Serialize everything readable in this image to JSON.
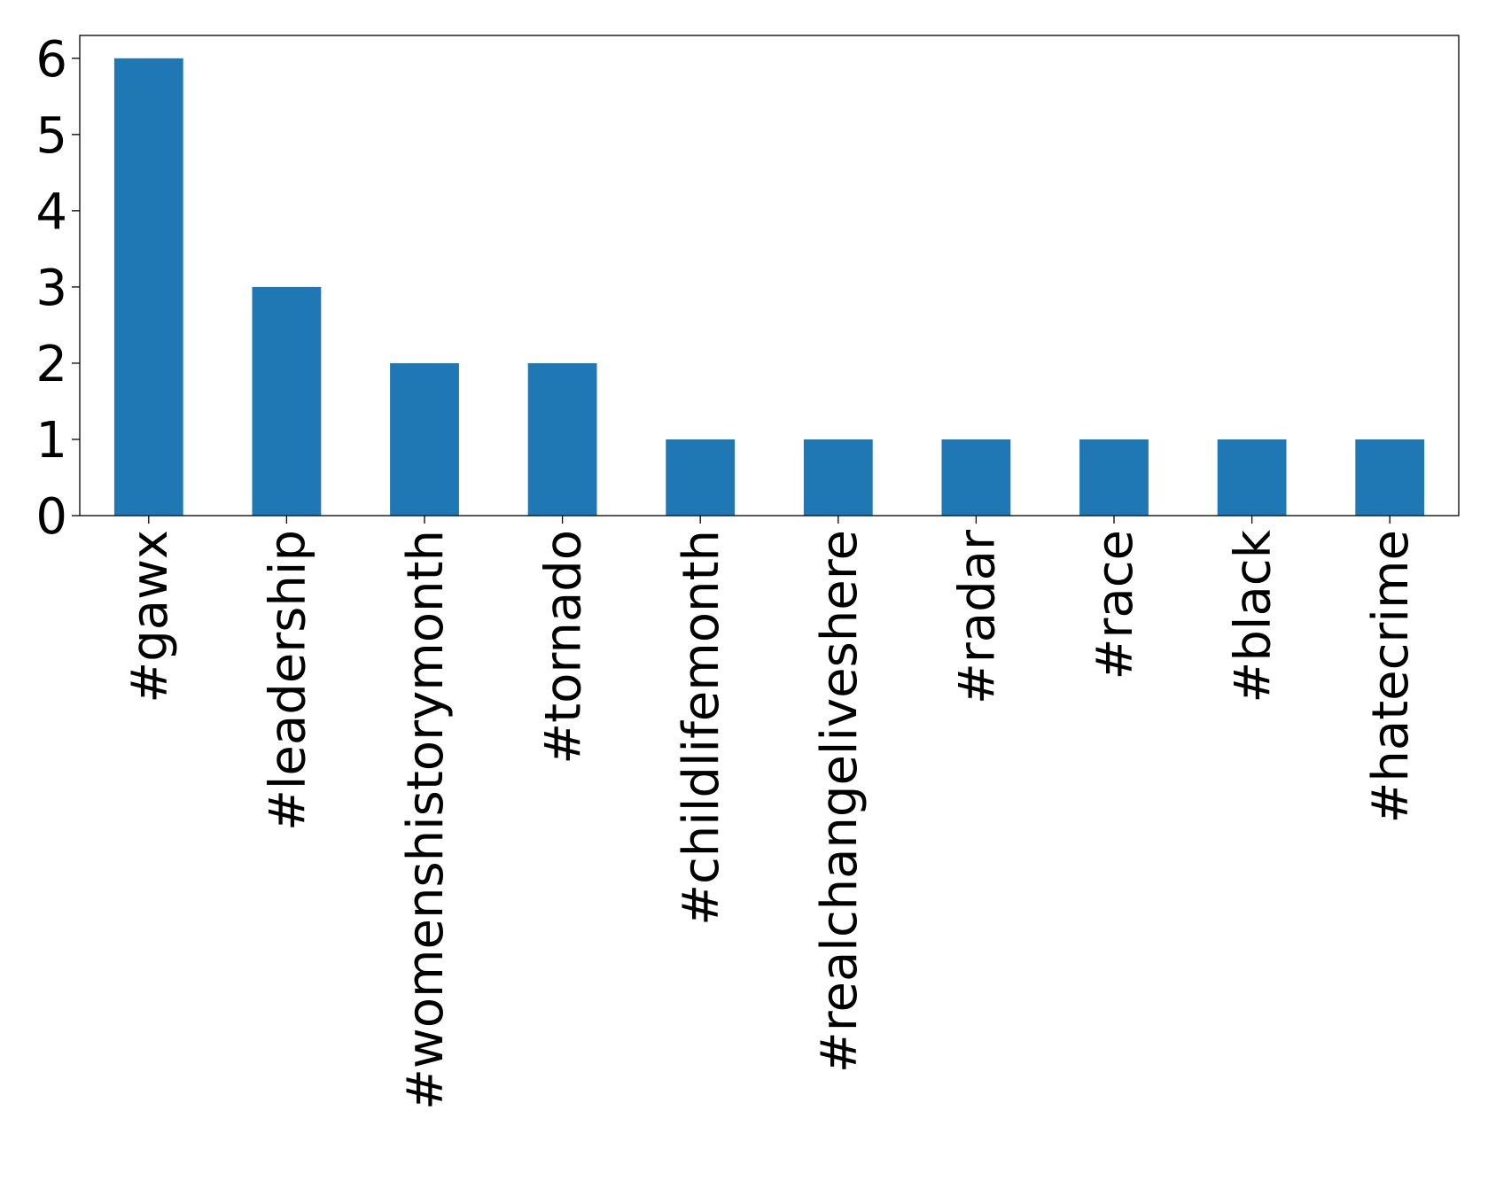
{
  "chart_data": {
    "type": "bar",
    "title": "",
    "xlabel": "",
    "ylabel": "",
    "categories": [
      "#gawx",
      "#leadership",
      "#womenshistorymonth",
      "#tornado",
      "#childlifemonth",
      "#realchangeliveshere",
      "#radar",
      "#race",
      "#black",
      "#hatecrime"
    ],
    "values": [
      6,
      3,
      2,
      2,
      1,
      1,
      1,
      1,
      1,
      1
    ],
    "ylim": [
      0,
      6.3
    ],
    "yticks": [
      "0",
      "1",
      "2",
      "3",
      "4",
      "5",
      "6"
    ],
    "grid": false,
    "legend": "none",
    "bar_color": "#1f77b4",
    "xtick_rotation": "vertical"
  }
}
